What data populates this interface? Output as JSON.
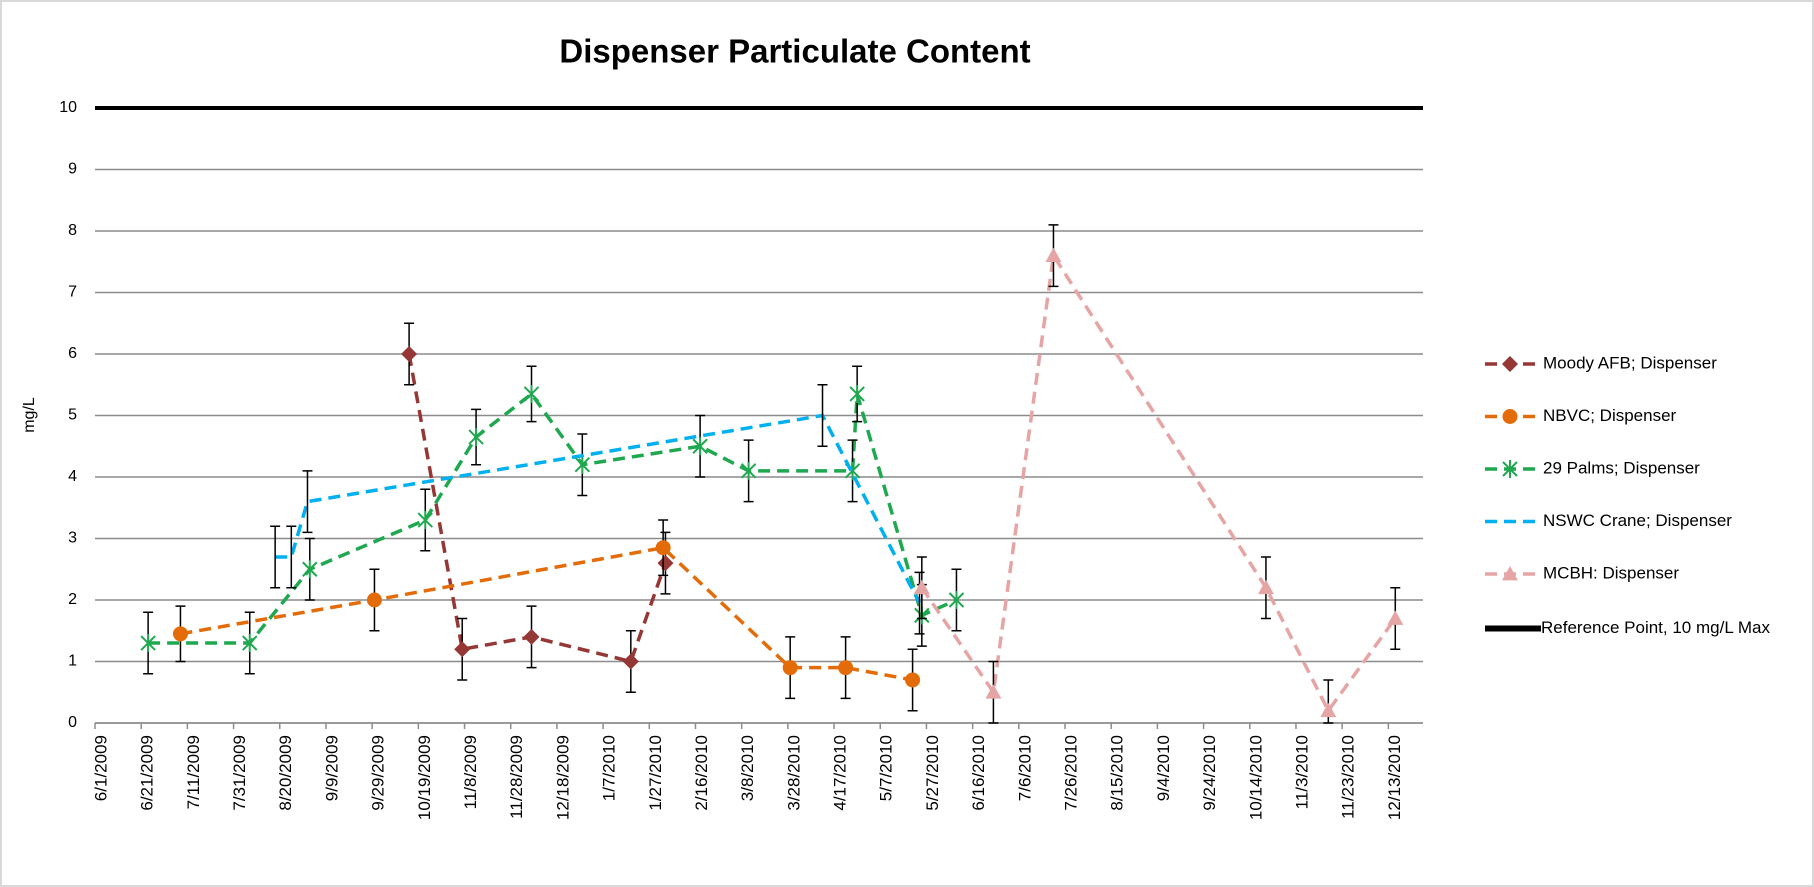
{
  "chart_data": {
    "type": "line",
    "title": "Dispenser Particulate Content",
    "y_label": "mg/L",
    "xlim": [
      "6/1/2009",
      "12/28/2010"
    ],
    "xticks": [
      "6/1/2009",
      "6/21/2009",
      "7/11/2009",
      "7/31/2009",
      "8/20/2009",
      "9/9/2009",
      "9/29/2009",
      "10/19/2009",
      "11/8/2009",
      "11/28/2009",
      "12/18/2009",
      "1/7/2010",
      "1/27/2010",
      "2/16/2010",
      "3/8/2010",
      "3/28/2010",
      "4/17/2010",
      "5/7/2010",
      "5/27/2010",
      "6/16/2010",
      "7/6/2010",
      "7/26/2010",
      "8/15/2010",
      "9/4/2010",
      "9/24/2010",
      "10/14/2010",
      "11/3/2010",
      "11/23/2010",
      "12/13/2010"
    ],
    "ylim": [
      0,
      10
    ],
    "yticks": [
      0,
      1,
      2,
      3,
      4,
      5,
      6,
      7,
      8,
      9,
      10
    ],
    "grid": true,
    "legend": "right",
    "series": [
      {
        "name": "Moody AFB;  Dispenser",
        "color": "#953735",
        "marker": "diamond",
        "x": [
          "10/15/2009",
          "11/7/2009",
          "12/7/2009",
          "1/19/2010",
          "2/3/2010"
        ],
        "values": [
          6.0,
          1.2,
          1.4,
          1.0,
          2.6
        ],
        "errors": [
          0.5,
          0.5,
          0.5,
          0.5,
          0.5
        ]
      },
      {
        "name": "NBVC; Dispenser",
        "color": "#e36c09",
        "marker": "circle",
        "x": [
          "7/8/2009",
          "9/30/2009",
          "2/2/2010",
          "3/29/2010",
          "4/22/2010",
          "5/21/2010"
        ],
        "values": [
          1.45,
          2.0,
          2.85,
          0.9,
          0.9,
          0.7
        ],
        "errors": [
          0.45,
          0.5,
          0.45,
          0.5,
          0.5,
          0.5
        ]
      },
      {
        "name": "29 Palms; Dispenser",
        "color": "#1fa84f",
        "marker": "star",
        "x": [
          "6/24/2009",
          "8/7/2009",
          "9/2/2009",
          "10/22/2009",
          "11/13/2009",
          "12/7/2009",
          "12/29/2009",
          "2/18/2010",
          "3/11/2010",
          "4/25/2010",
          "4/27/2010",
          "5/25/2010",
          "6/9/2010"
        ],
        "values": [
          1.3,
          1.3,
          2.5,
          3.3,
          4.65,
          5.35,
          4.2,
          4.5,
          4.1,
          4.1,
          5.35,
          1.75,
          2.0
        ],
        "errors": [
          0.5,
          0.5,
          0.5,
          0.5,
          0.45,
          0.45,
          0.5,
          0.5,
          0.5,
          0.5,
          0.45,
          0.5,
          0.5
        ]
      },
      {
        "name": "NSWC Crane; Dispenser",
        "color": "#00b0f0",
        "marker": "none",
        "x": [
          "8/18/2009",
          "8/25/2009",
          "9/1/2009",
          "4/12/2010",
          "5/24/2010"
        ],
        "values": [
          2.7,
          2.7,
          3.6,
          5.0,
          1.95
        ],
        "errors": [
          0.5,
          0.5,
          0.5,
          0.5,
          0.5
        ]
      },
      {
        "name": "MCBH: Dispenser",
        "color": "#e6a5a5",
        "marker": "triangle",
        "x": [
          "5/25/2010",
          "6/25/2010",
          "7/21/2010",
          "10/21/2010",
          "11/17/2010",
          "12/16/2010"
        ],
        "values": [
          2.2,
          0.5,
          7.6,
          2.2,
          0.2,
          1.7
        ],
        "errors": [
          0.5,
          0.5,
          0.5,
          0.5,
          0.5,
          0.5
        ]
      }
    ],
    "reference_line": {
      "name": "Reference Point, 10 mg/L Max",
      "value": 10,
      "color": "#000000"
    }
  }
}
